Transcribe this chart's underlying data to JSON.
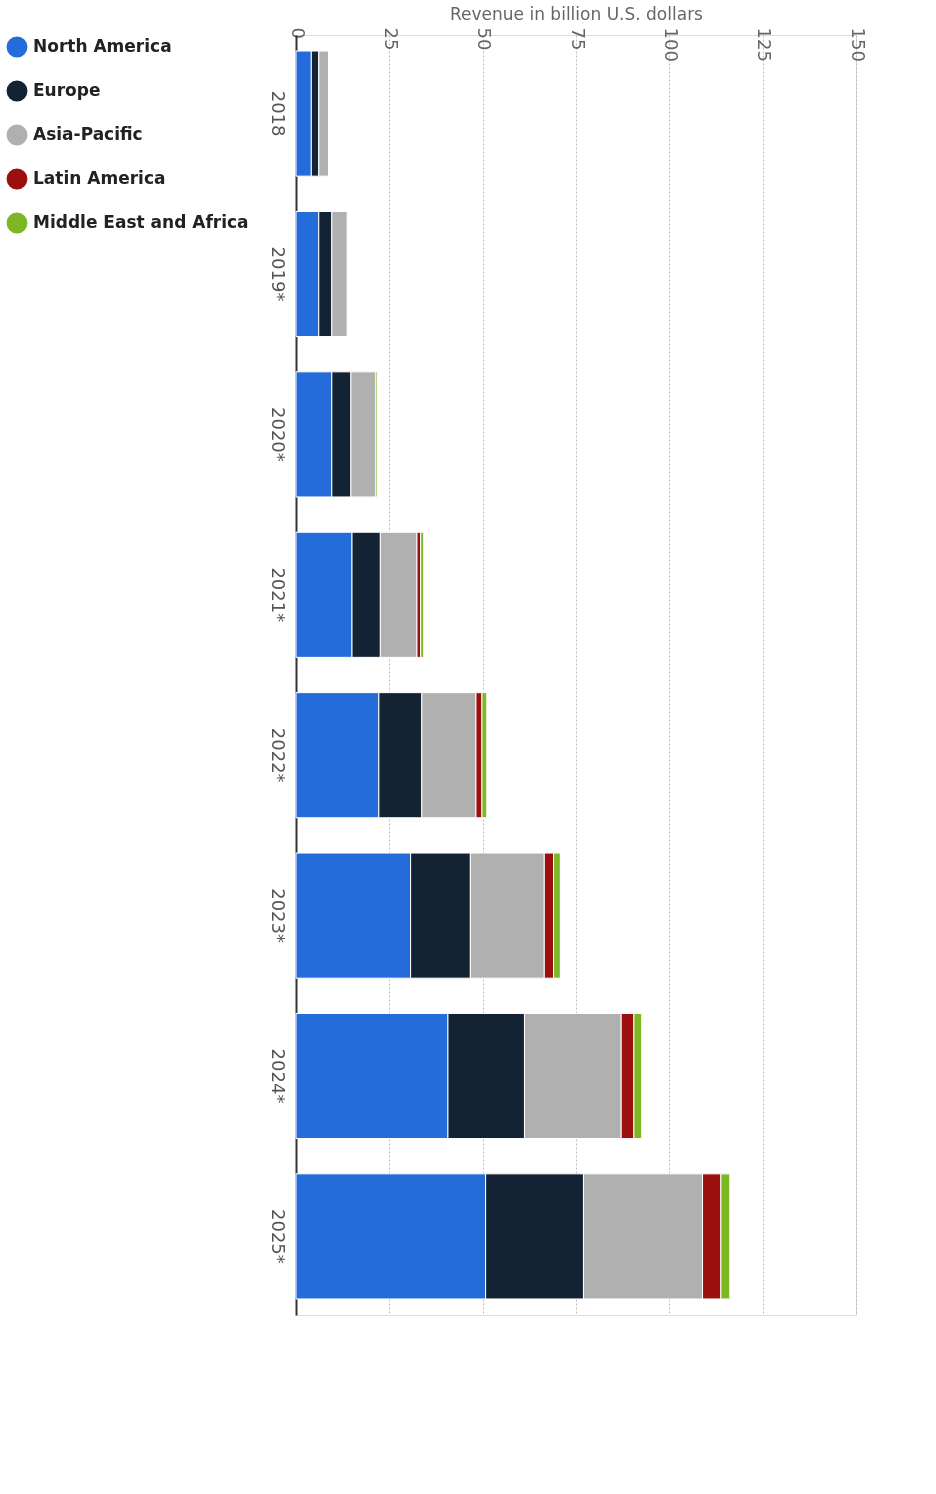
{
  "chart_data": {
    "type": "bar",
    "orientation": "horizontal",
    "stacked": true,
    "xlabel": "Revenue in billion U.S. dollars",
    "categories": [
      "2018",
      "2019*",
      "2020*",
      "2021*",
      "2022*",
      "2023*",
      "2024*",
      "2025*"
    ],
    "series": [
      {
        "name": "North America",
        "color": "#246cd9",
        "values": [
          4.1,
          6.1,
          9.6,
          15.0,
          22.2,
          30.7,
          40.7,
          50.8
        ]
      },
      {
        "name": "Europe",
        "color": "#132333",
        "values": [
          2.0,
          3.5,
          5.1,
          7.6,
          11.5,
          16.0,
          20.5,
          26.2
        ]
      },
      {
        "name": "Asia-Pacific",
        "color": "#b0b0b0",
        "values": [
          2.6,
          4.1,
          6.7,
          9.8,
          14.5,
          19.8,
          25.9,
          31.9
        ]
      },
      {
        "name": "Latin America",
        "color": "#9b0f0f",
        "values": [
          null,
          null,
          null,
          1.0,
          1.6,
          2.5,
          3.4,
          4.9
        ]
      },
      {
        "name": "Middle East and Africa",
        "color": "#7db824",
        "values": [
          null,
          null,
          0.4,
          0.8,
          1.3,
          1.8,
          2.1,
          2.4
        ]
      }
    ],
    "xlim": [
      0,
      150
    ],
    "xticks": [
      0,
      25,
      50,
      75,
      100,
      125,
      150
    ],
    "grid": "x",
    "legend": "left"
  }
}
